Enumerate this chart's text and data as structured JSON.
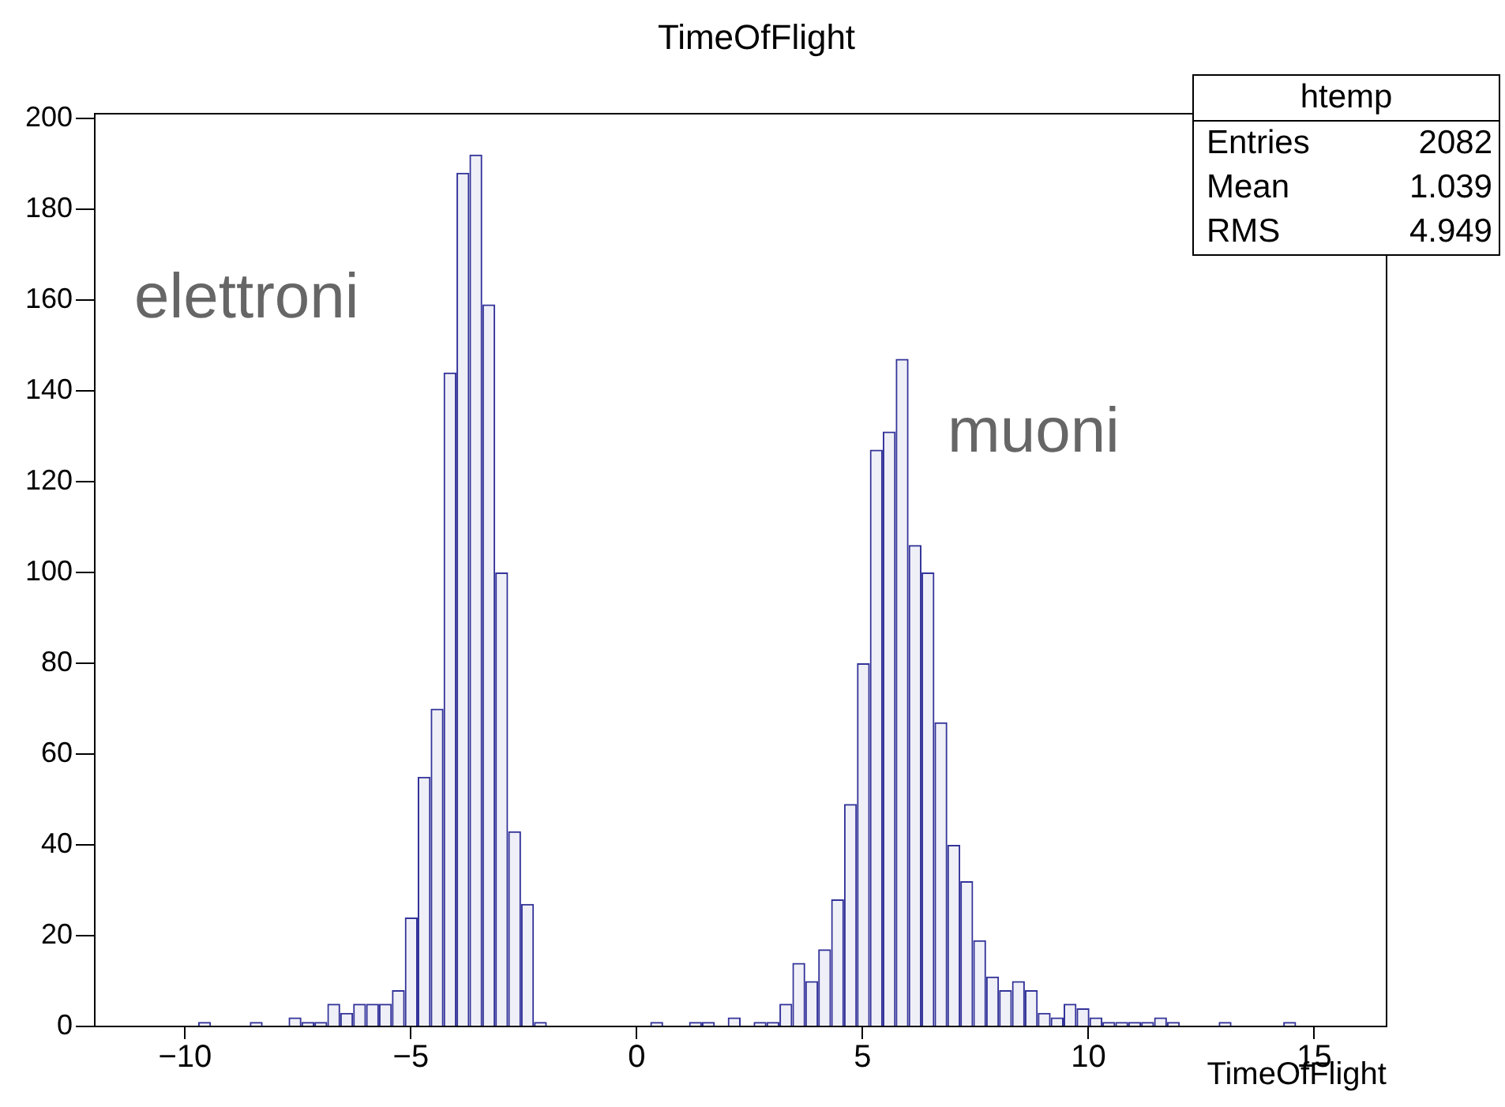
{
  "chart_data": {
    "type": "histogram",
    "title": "TimeOfFlight",
    "xlabel": "TimeOfFlight",
    "bins": [
      -12,
      -11.714,
      -11.428,
      -11.142,
      -10.856,
      -10.57,
      -10.284,
      -9.998,
      -9.712,
      -9.426,
      -9.14,
      -8.854,
      -8.568,
      -8.282,
      -7.996,
      -7.71,
      -7.424,
      -7.138,
      -6.852,
      -6.566,
      -6.28,
      -5.994,
      -5.708,
      -5.422,
      -5.136,
      -4.85,
      -4.564,
      -4.278,
      -3.992,
      -3.706,
      -3.42,
      -3.134,
      -2.848,
      -2.562,
      -2.276,
      -1.99,
      -1.704,
      -1.418,
      -1.132,
      -0.846,
      -0.56,
      -0.274,
      0.012,
      0.298,
      0.584,
      0.87,
      1.156,
      1.442,
      1.728,
      2.014,
      2.3,
      2.586,
      2.872,
      3.158,
      3.444,
      3.73,
      4.016,
      4.302,
      4.588,
      4.874,
      5.16,
      5.446,
      5.732,
      6.018,
      6.304,
      6.59,
      6.876,
      7.162,
      7.448,
      7.734,
      8.02,
      8.306,
      8.592,
      8.878,
      9.164,
      9.45,
      9.736,
      10.022,
      10.308,
      10.594,
      10.88,
      11.166,
      11.452,
      11.738,
      12.024,
      12.31,
      12.596,
      12.882,
      13.168,
      13.454,
      13.74,
      14.026,
      14.312,
      14.598,
      14.884,
      15.17,
      15.456,
      15.742,
      16.028,
      16.314,
      16.6
    ],
    "values": [
      0,
      0,
      0,
      0,
      0,
      0,
      0,
      0,
      1,
      0,
      0,
      0,
      1,
      0,
      0,
      2,
      1,
      1,
      5,
      3,
      5,
      5,
      5,
      8,
      24,
      55,
      70,
      144,
      188,
      192,
      159,
      100,
      43,
      27,
      1,
      0,
      0,
      0,
      0,
      0,
      0,
      0,
      0,
      1,
      0,
      0,
      1,
      1,
      0,
      2,
      0,
      1,
      1,
      5,
      14,
      10,
      17,
      28,
      49,
      80,
      127,
      131,
      147,
      106,
      100,
      67,
      40,
      32,
      19,
      11,
      8,
      10,
      8,
      3,
      2,
      5,
      4,
      2,
      1,
      1,
      1,
      1,
      2,
      1,
      0,
      0,
      0,
      1,
      0,
      0,
      0,
      0,
      1,
      0,
      0,
      0,
      0,
      0,
      0,
      0
    ],
    "color": "#33339a",
    "xlim": [
      -12,
      16.6
    ],
    "xticks": [
      -10,
      -5,
      0,
      5,
      10,
      15
    ],
    "ylim": [
      0,
      201
    ],
    "yticks": [
      0,
      20,
      40,
      60,
      80,
      100,
      120,
      140,
      160,
      180,
      200
    ],
    "grid": false,
    "legend": false,
    "annotations": [
      "elettroni",
      "muoni",
      "htemp",
      "Entries",
      "2082",
      "Mean",
      "1.039",
      "RMS",
      "4.949"
    ]
  }
}
